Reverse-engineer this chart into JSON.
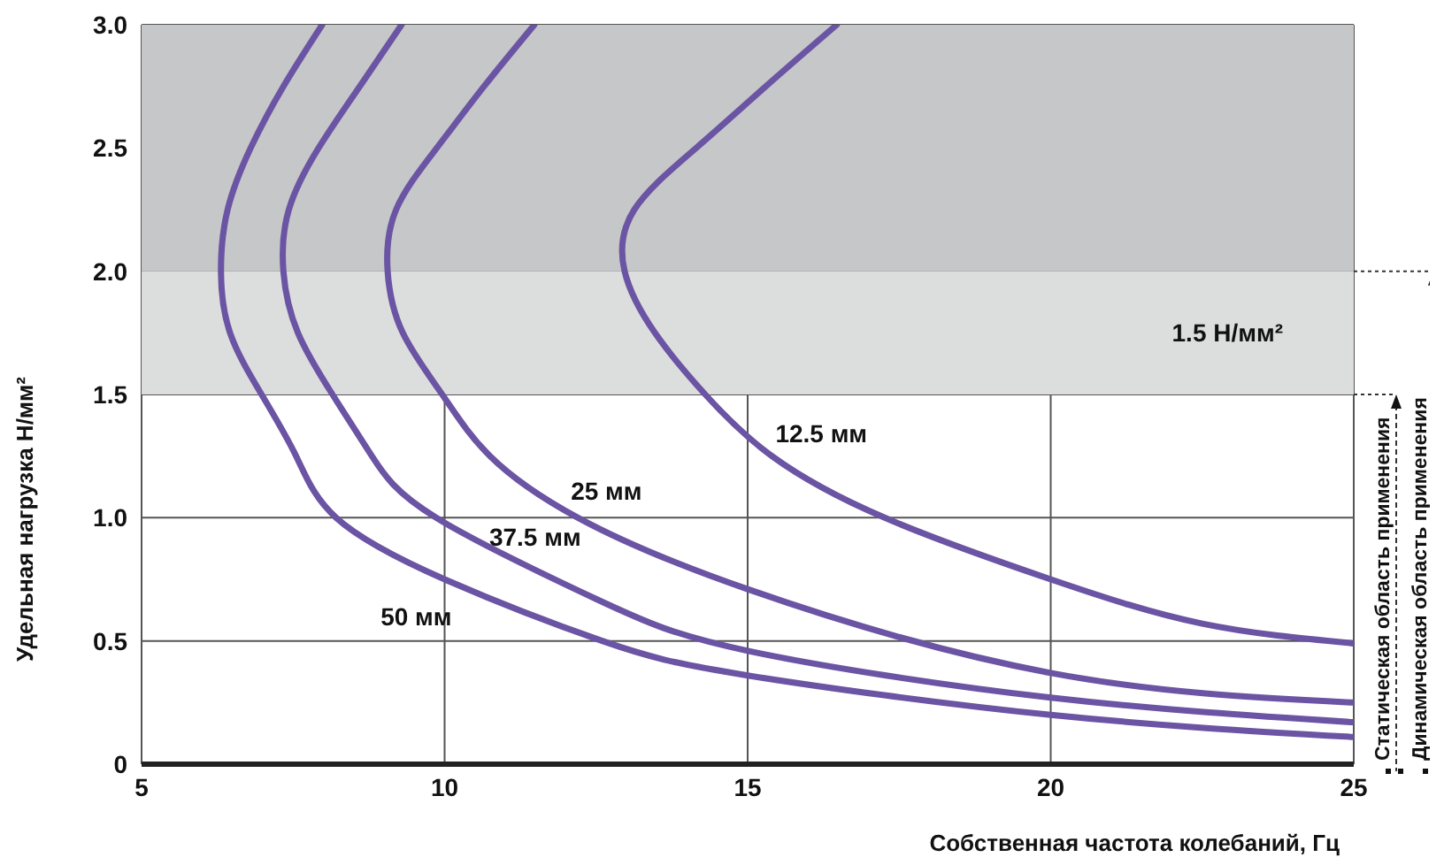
{
  "chart_data": {
    "type": "line",
    "xlabel": "Собственная частота колебаний, Гц",
    "ylabel": "Удельная нагрузка Н/мм²",
    "xlim": [
      5,
      25
    ],
    "xticks": [
      5,
      10,
      15,
      20,
      25
    ],
    "ylim": [
      0,
      3
    ],
    "yticks": [
      0,
      0.5,
      {
        "value": 1,
        "label": "1.0"
      },
      1.5,
      {
        "value": 2,
        "label": "2.0"
      },
      2.5,
      {
        "value": 3,
        "label": "3.0"
      }
    ],
    "grid": true,
    "legend": false,
    "marker": "none",
    "line_style": "solid",
    "series": [
      {
        "name": "12.5 мм",
        "color": "#6a54a3",
        "x": [
          16.47,
          15.3,
          14.15,
          13.13,
          12.97,
          13.47,
          14.3,
          15.4,
          17.26,
          20,
          22.5,
          25
        ],
        "values": [
          3,
          2.75,
          2.5,
          2.25,
          2,
          1.75,
          1.5,
          1.25,
          1,
          0.75,
          0.57,
          0.49
        ]
      },
      {
        "name": "25 мм",
        "color": "#6a54a3",
        "x": [
          11.48,
          10.65,
          9.87,
          9.2,
          9.06,
          9.31,
          9.96,
          10.75,
          12.2,
          15,
          20,
          25
        ],
        "values": [
          3,
          2.75,
          2.5,
          2.25,
          2,
          1.75,
          1.5,
          1.25,
          1,
          0.71,
          0.37,
          0.25
        ]
      },
      {
        "name": "37.5 мм",
        "color": "#6a54a3",
        "x": [
          9.29,
          8.6,
          7.92,
          7.43,
          7.34,
          7.58,
          8.15,
          8.8,
          9.86,
          12.5,
          15,
          20,
          25
        ],
        "values": [
          3,
          2.75,
          2.5,
          2.25,
          2,
          1.75,
          1.5,
          1.25,
          1,
          0.67,
          0.46,
          0.27,
          0.17
        ]
      },
      {
        "name": "50 мм",
        "color": "#6a54a3",
        "x": [
          7.98,
          7.34,
          6.8,
          6.42,
          6.31,
          6.46,
          6.98,
          7.55,
          8.21,
          10,
          12.6,
          15,
          20,
          25
        ],
        "values": [
          3,
          2.75,
          2.5,
          2.25,
          2,
          1.75,
          1.5,
          1.25,
          1,
          0.75,
          0.5,
          0.36,
          0.2,
          0.11
        ]
      }
    ],
    "bands": [
      {
        "axis": "y",
        "from": 1.5,
        "to": 2,
        "label": "1.5 Н/мм²",
        "color": "#dcdddd"
      },
      {
        "axis": "y",
        "from": 2,
        "to": 3,
        "color": "#c6c7c9"
      }
    ],
    "annotations": [
      "Статическая область применения",
      "Динамическая область применения"
    ]
  }
}
